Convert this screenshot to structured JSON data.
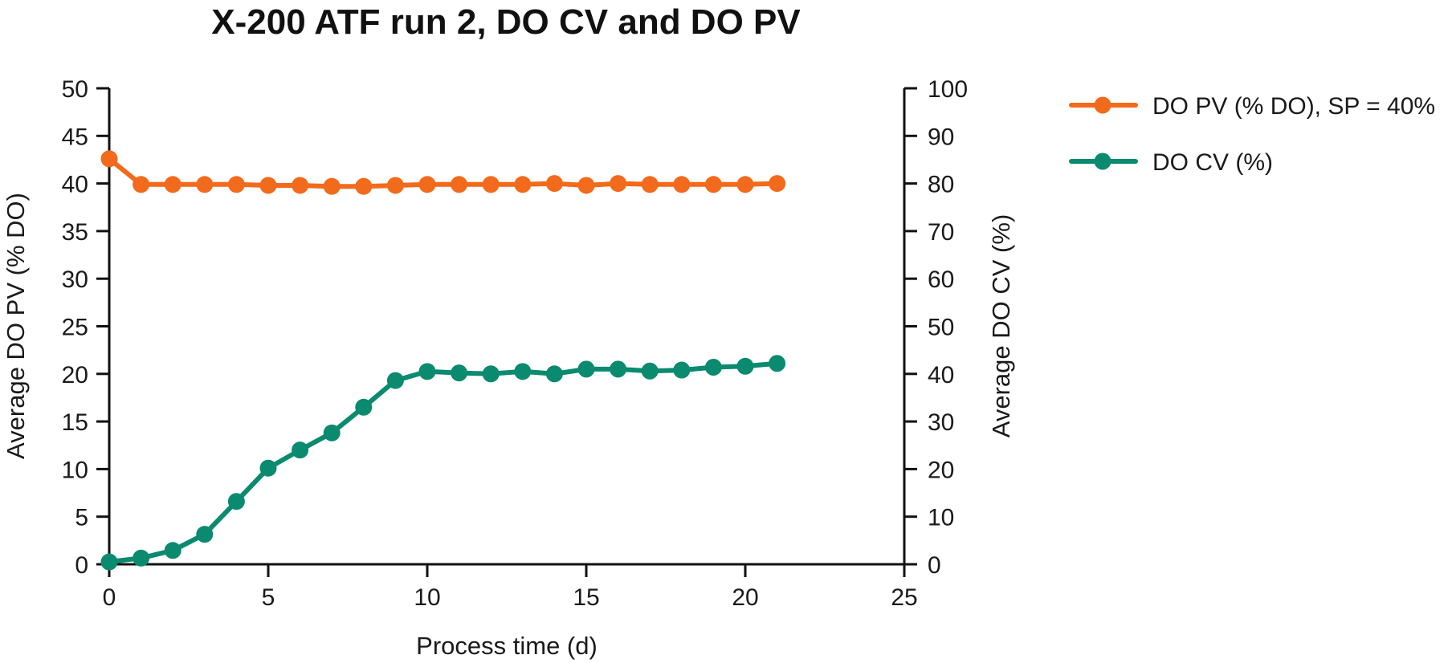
{
  "chart_data": {
    "type": "line",
    "title": "X-200 ATF run 2, DO CV and DO PV",
    "xlabel": "Process time (d)",
    "ylabel": "Average DO PV (% DO)",
    "y2label": "Average DO CV (%)",
    "xlim": [
      0,
      25
    ],
    "ylim": [
      0,
      50
    ],
    "y2lim": [
      0,
      100
    ],
    "xticks": [
      0,
      5,
      10,
      15,
      20,
      25
    ],
    "yticks": [
      0,
      5,
      10,
      15,
      20,
      25,
      30,
      35,
      40,
      45,
      50
    ],
    "y2ticks": [
      0,
      10,
      20,
      30,
      40,
      50,
      60,
      70,
      80,
      90,
      100
    ],
    "grid": false,
    "legend": "top-right, outside plot",
    "x": [
      0,
      1,
      2,
      3,
      4,
      5,
      6,
      7,
      8,
      9,
      10,
      11,
      12,
      13,
      14,
      15,
      16,
      17,
      18,
      19,
      20,
      21
    ],
    "series": [
      {
        "name": "DO PV (% DO), SP = 40%",
        "axis": "left",
        "color": "#F26A1B",
        "values": [
          42.6,
          39.9,
          39.9,
          39.9,
          39.9,
          39.8,
          39.8,
          39.7,
          39.7,
          39.8,
          39.9,
          39.9,
          39.9,
          39.9,
          40.0,
          39.8,
          40.0,
          39.9,
          39.9,
          39.9,
          39.9,
          40.0
        ]
      },
      {
        "name": "DO CV (%)",
        "axis": "right",
        "color": "#0A8A6E",
        "values": [
          0.5,
          1.3,
          2.9,
          6.3,
          13.2,
          20.2,
          24.0,
          27.6,
          33.0,
          38.6,
          40.5,
          40.2,
          40.0,
          40.5,
          40.0,
          41.0,
          41.0,
          40.6,
          40.8,
          41.4,
          41.6,
          42.2
        ]
      }
    ]
  }
}
